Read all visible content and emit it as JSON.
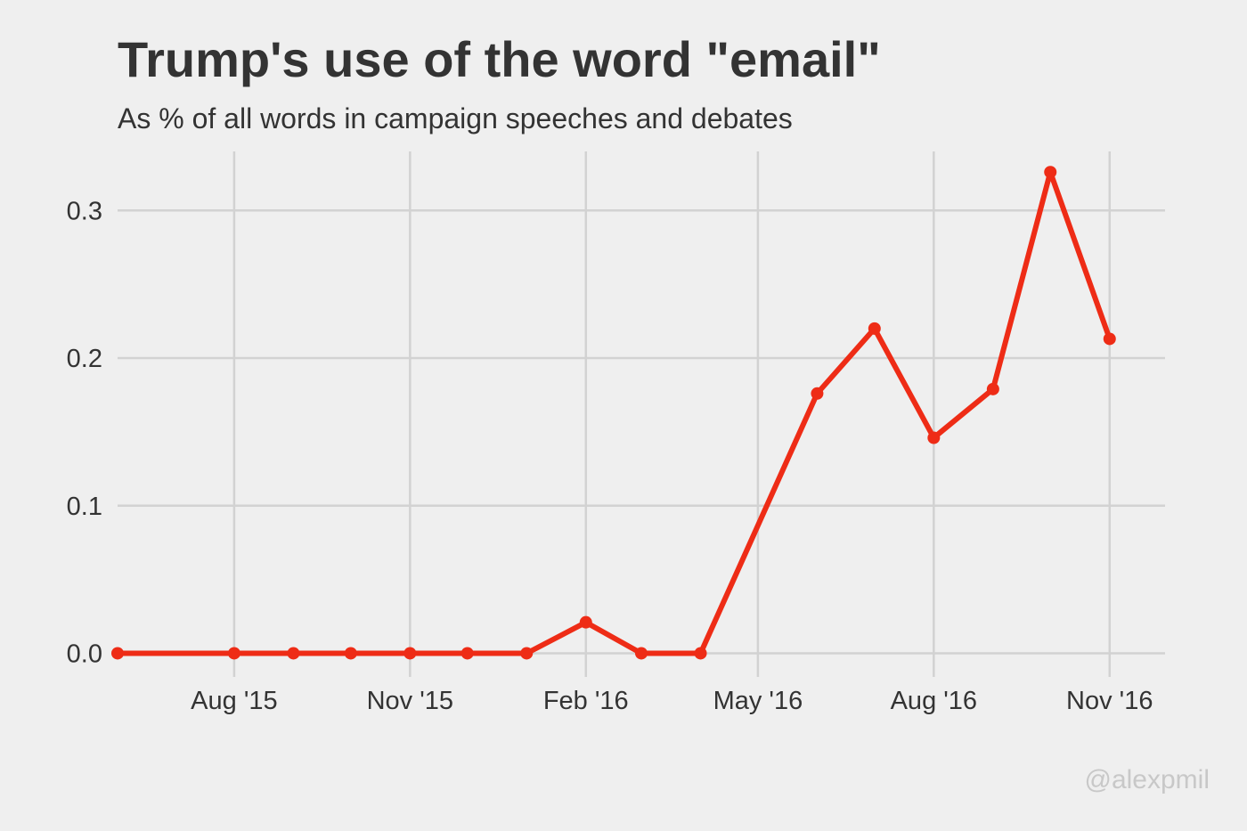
{
  "chart_data": {
    "type": "line",
    "title": "Trump's use of the word \"email\"",
    "subtitle": "As % of all words in campaign speeches and debates",
    "xlabel": "",
    "ylabel": "",
    "x_axis_type": "date",
    "xlim": [
      "2015-06-01",
      "2016-11-30"
    ],
    "ylim": [
      -0.016,
      0.34
    ],
    "x_ticks": [
      {
        "date": "2015-08-01",
        "label": "Aug '15"
      },
      {
        "date": "2015-11-01",
        "label": "Nov '15"
      },
      {
        "date": "2016-02-01",
        "label": "Feb '16"
      },
      {
        "date": "2016-05-01",
        "label": "May '16"
      },
      {
        "date": "2016-08-01",
        "label": "Aug '16"
      },
      {
        "date": "2016-11-01",
        "label": "Nov '16"
      }
    ],
    "y_ticks": [
      {
        "value": 0.0,
        "label": "0.0"
      },
      {
        "value": 0.1,
        "label": "0.1"
      },
      {
        "value": 0.2,
        "label": "0.2"
      },
      {
        "value": 0.3,
        "label": "0.3"
      }
    ],
    "grid": true,
    "legend": "none",
    "series": [
      {
        "color": "#ee2c16",
        "points": [
          {
            "x": "2015-06-01",
            "y": 0.0
          },
          {
            "x": "2015-08-01",
            "y": 0.0
          },
          {
            "x": "2015-09-01",
            "y": 0.0
          },
          {
            "x": "2015-10-01",
            "y": 0.0
          },
          {
            "x": "2015-11-01",
            "y": 0.0
          },
          {
            "x": "2015-12-01",
            "y": 0.0
          },
          {
            "x": "2016-01-01",
            "y": 0.0
          },
          {
            "x": "2016-02-01",
            "y": 0.021
          },
          {
            "x": "2016-03-01",
            "y": 0.0
          },
          {
            "x": "2016-04-01",
            "y": 0.0
          },
          {
            "x": "2016-06-01",
            "y": 0.176
          },
          {
            "x": "2016-07-01",
            "y": 0.22
          },
          {
            "x": "2016-08-01",
            "y": 0.146
          },
          {
            "x": "2016-09-01",
            "y": 0.179
          },
          {
            "x": "2016-10-01",
            "y": 0.326
          },
          {
            "x": "2016-11-01",
            "y": 0.213
          }
        ]
      }
    ]
  },
  "credit": "@alexpmil",
  "colors": {
    "background": "#efefef",
    "gridline": "#d2d2d2",
    "text": "#333333",
    "credit": "#c8c8c8",
    "series": "#ee2c16"
  }
}
